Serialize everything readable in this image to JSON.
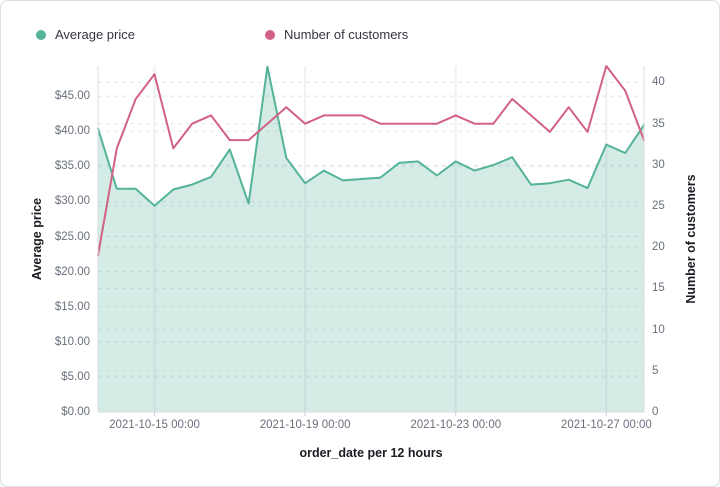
{
  "legend": {
    "items": [
      {
        "label": "Average price",
        "color": "#54b399"
      },
      {
        "label": "Number of customers",
        "color": "#d36086"
      }
    ]
  },
  "chart_data": {
    "type": "area",
    "title": "",
    "x": [
      "2021-10-13 12:00",
      "2021-10-14 00:00",
      "2021-10-14 12:00",
      "2021-10-15 00:00",
      "2021-10-15 12:00",
      "2021-10-16 00:00",
      "2021-10-16 12:00",
      "2021-10-17 00:00",
      "2021-10-17 12:00",
      "2021-10-18 00:00",
      "2021-10-18 12:00",
      "2021-10-19 00:00",
      "2021-10-19 12:00",
      "2021-10-20 00:00",
      "2021-10-20 12:00",
      "2021-10-21 00:00",
      "2021-10-21 12:00",
      "2021-10-22 00:00",
      "2021-10-22 12:00",
      "2021-10-23 00:00",
      "2021-10-23 12:00",
      "2021-10-24 00:00",
      "2021-10-24 12:00",
      "2021-10-25 00:00",
      "2021-10-25 12:00",
      "2021-10-26 00:00",
      "2021-10-26 12:00",
      "2021-10-27 00:00",
      "2021-10-27 12:00",
      "2021-10-28 00:00"
    ],
    "series": [
      {
        "name": "Average price",
        "type": "area",
        "axis": "left",
        "color": "#54b399",
        "fill_opacity": 0.25,
        "values": [
          40.4,
          31.8,
          31.8,
          29.4,
          31.7,
          32.4,
          33.5,
          37.4,
          29.7,
          49.2,
          36.2,
          32.6,
          34.4,
          33.0,
          33.2,
          33.4,
          35.5,
          35.7,
          33.7,
          35.7,
          34.4,
          35.2,
          36.3,
          32.4,
          32.6,
          33.1,
          31.9,
          38.1,
          36.9,
          40.9
        ]
      },
      {
        "name": "Number of customers",
        "type": "line",
        "axis": "right",
        "color": "#d36086",
        "values": [
          19,
          32,
          38,
          41,
          32,
          35,
          36,
          33,
          33,
          35,
          37,
          35,
          36,
          36,
          36,
          35,
          35,
          35,
          35,
          36,
          35,
          35,
          38,
          36,
          34,
          37,
          34,
          42,
          39,
          33
        ]
      }
    ],
    "left_axis": {
      "title": "Average price",
      "min": 0,
      "max": 49.3,
      "ticks": [
        "$0.00",
        "$5.00",
        "$10.00",
        "$15.00",
        "$20.00",
        "$25.00",
        "$30.00",
        "$35.00",
        "$40.00",
        "$45.00"
      ]
    },
    "right_axis": {
      "title": "Number of customers",
      "min": 0,
      "max": 42,
      "ticks": [
        "0",
        "5",
        "10",
        "15",
        "20",
        "25",
        "30",
        "35",
        "40"
      ]
    },
    "x_axis": {
      "title": "order_date per 12 hours",
      "tick_labels": [
        "2021-10-15 00:00",
        "2021-10-19 00:00",
        "2021-10-23 00:00",
        "2021-10-27 00:00"
      ]
    },
    "grid": {
      "horizontal_dashed": true,
      "vertical_at_ticks": true
    }
  }
}
